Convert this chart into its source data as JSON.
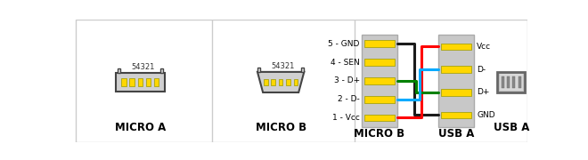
{
  "bg_color": "#ffffff",
  "border_color": "#cccccc",
  "connector_fill": "#d0d0d0",
  "pin_color": "#ffd700",
  "wire_colors": {
    "black": "#1a1a1a",
    "red": "#ff0000",
    "green": "#008000",
    "blue": "#00aaff"
  },
  "micro_b_labels": [
    "5 - GND",
    "4 - SEN",
    "3 - D+",
    "2 - D-",
    "1 - Vcc"
  ],
  "usb_a_labels": [
    "Vcc",
    "D-",
    "D+",
    "GND"
  ],
  "micro_b_label": "MICRO B",
  "usb_a_label": "USB A",
  "micro_a_label": "MICRO A",
  "usb_a_right_label": "USB A",
  "pin_number_label": "54321",
  "font_size": 6.5,
  "label_font_size": 8.5
}
